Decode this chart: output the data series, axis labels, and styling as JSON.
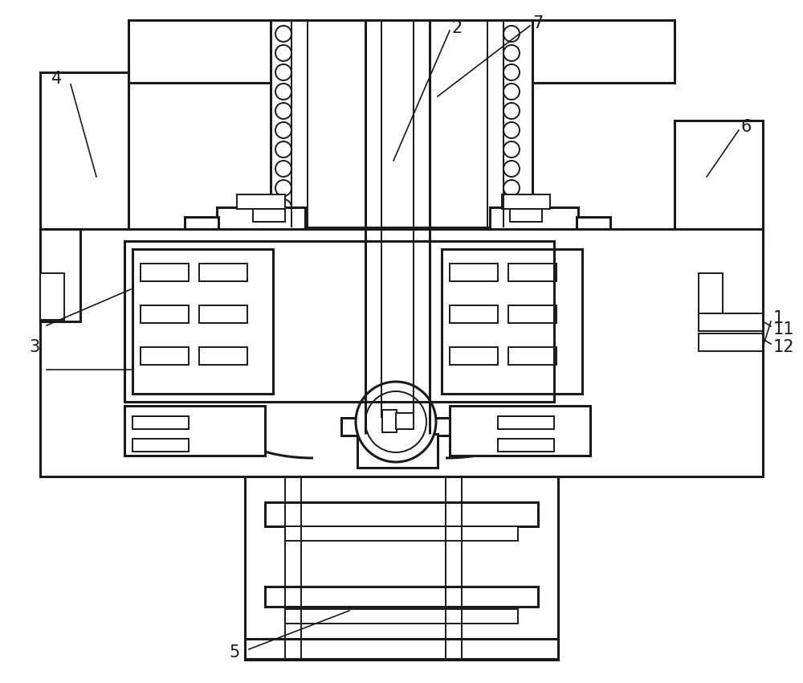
{
  "bg_color": "#ffffff",
  "line_color": "#1a1a1a",
  "lw": 2.2,
  "tlw": 1.4
}
